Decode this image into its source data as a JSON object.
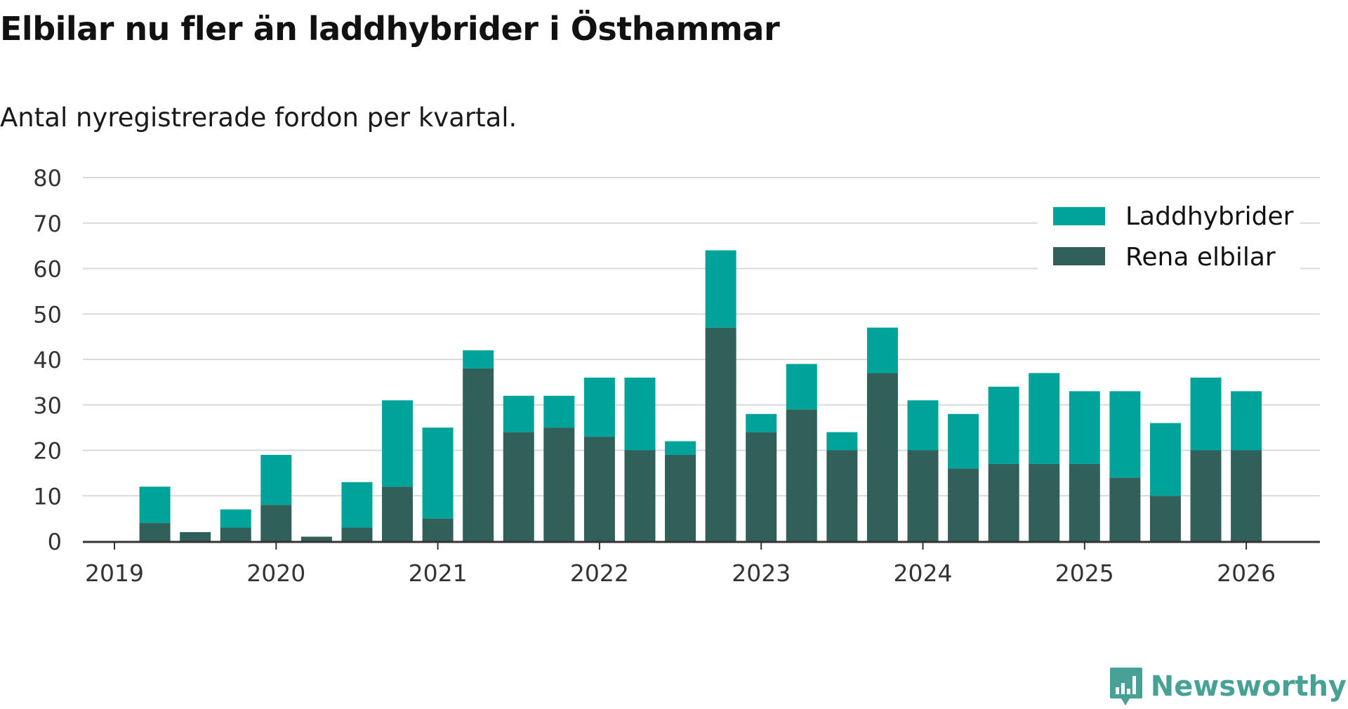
{
  "title": "Elbilar nu fler än laddhybrider i Östhammar",
  "subtitle": "Antal nyregistrerade fordon per kvartal.",
  "brand": "Newsworthy",
  "colors": {
    "laddhybrider": "#00a39a",
    "rena": "#315f59",
    "grid": "#d9d9d9",
    "axis": "#333333"
  },
  "chart_data": {
    "type": "bar",
    "stacked": true,
    "ylim": [
      0,
      80
    ],
    "yticks": [
      "0",
      "10",
      "20",
      "30",
      "40",
      "50",
      "60",
      "70",
      "80"
    ],
    "xticks": [
      "2019",
      "2020",
      "2021",
      "2022",
      "2023",
      "2024",
      "2025",
      "2026"
    ],
    "legend_position": "top-right",
    "categories": [
      "2019 Q2",
      "2019 Q3",
      "2019 Q4",
      "2020 Q1",
      "2020 Q2",
      "2020 Q3",
      "2020 Q4",
      "2021 Q1",
      "2021 Q2",
      "2021 Q3",
      "2021 Q4",
      "2022 Q1",
      "2022 Q2",
      "2022 Q3",
      "2022 Q4",
      "2023 Q1",
      "2023 Q2",
      "2023 Q3",
      "2023 Q4",
      "2024 Q1",
      "2024 Q2",
      "2024 Q3",
      "2024 Q4",
      "2025 Q1",
      "2025 Q2",
      "2025 Q3",
      "2025 Q4",
      "2026 Q1"
    ],
    "series": [
      {
        "name": "Rena elbilar",
        "values": [
          4,
          2,
          3,
          8,
          1,
          3,
          12,
          5,
          38,
          24,
          25,
          23,
          20,
          19,
          47,
          24,
          29,
          20,
          37,
          20,
          16,
          17,
          17,
          17,
          14,
          10,
          20,
          20
        ]
      },
      {
        "name": "Laddhybrider",
        "values": [
          8,
          0,
          4,
          11,
          0,
          10,
          19,
          20,
          4,
          8,
          7,
          13,
          16,
          3,
          17,
          4,
          10,
          4,
          10,
          11,
          12,
          17,
          20,
          16,
          19,
          16,
          16,
          13
        ]
      }
    ]
  }
}
